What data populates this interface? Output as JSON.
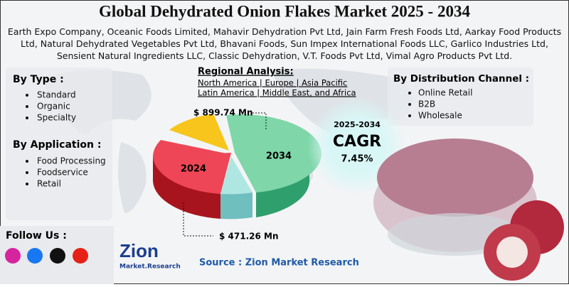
{
  "header": {
    "title": "Global Dehydrated Onion Flakes Market 2025 - 2034",
    "companies": "Earth Expo Company, Oceanic Foods Limited, Mahavir Dehydration Pvt Ltd, Jain Farm Fresh Foods Ltd, Aarkay Food Products Ltd, Natural Dehydrated Vegetables Pvt Ltd, Bhavani Foods, Sun Impex International Foods LLC, Garlico Industries Ltd, Sensient Natural Ingredients LLC, Classic Dehydration, V.T. Foods Pvt Ltd, Vimal Agro Products Pvt Ltd."
  },
  "by_type": {
    "title": "By Type :",
    "items": [
      "Standard",
      "Organic",
      "Specialty"
    ]
  },
  "by_application": {
    "title": "By Application :",
    "items": [
      "Food Processing",
      "Foodservice",
      "Retail"
    ]
  },
  "regional": {
    "title": "Regional Analysis:",
    "lines": [
      "North America | Europe | Asia Pacific",
      "Latin America | Middle East, and Africa"
    ]
  },
  "distribution": {
    "title": "By Distribution Channel :",
    "items": [
      "Online Retail",
      "B2B",
      "Wholesale"
    ]
  },
  "pie": {
    "label_2034": "2034",
    "label_2024": "2024",
    "value_2034": "$ 899.74 Mn",
    "value_2024": "$ 471.26 Mn"
  },
  "cagr": {
    "period": "2025-2034",
    "label": "CAGR",
    "value": "7.45%"
  },
  "footer": {
    "follow": "Follow Us :",
    "logo_main": "Zion",
    "logo_sub": "Market.Research",
    "source": "Source : Zion Market Research"
  }
}
